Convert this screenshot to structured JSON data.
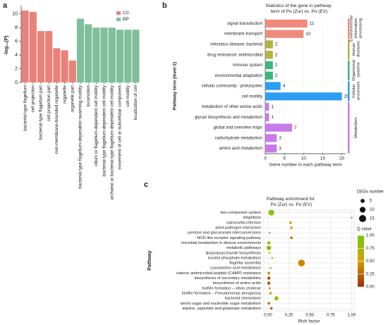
{
  "chart_data": [
    {
      "type": "bar",
      "label": "a",
      "ylabel": "-log₁₀(P)",
      "categories": [
        "bacterial-type flagellum",
        "cell projection",
        "bacterial-type flagellum part",
        "cell projection part",
        "non-membrane-bounded organelle",
        "organelle",
        "organelle part",
        "bacterial-type flagellum-dependent swarming motility",
        "locomotion",
        "cilium or flagellum-dependent cell motility",
        "bacterial-type flagellum-dependent cell motility",
        "archaeal or bacterial-type flagellum-dependent cell motility",
        "movement of cell or subcellular component",
        "cell motility",
        "localization of cell"
      ],
      "series": [
        {
          "name": "CC",
          "color": "#e8837c",
          "values": [
            10.5,
            10.3,
            7.5,
            7.5,
            5.0,
            4.7,
            3.2,
            null,
            null,
            null,
            null,
            null,
            null,
            null,
            null
          ]
        },
        {
          "name": "BP",
          "color": "#7fbf9b",
          "values": [
            null,
            null,
            null,
            null,
            null,
            null,
            null,
            9.3,
            8.5,
            8.0,
            8.0,
            8.0,
            7.7,
            7.7,
            7.7
          ]
        }
      ],
      "ylim": [
        0,
        10.8
      ],
      "yticks": [
        0,
        2,
        4,
        6,
        8,
        10
      ],
      "legend": "upper right"
    },
    {
      "type": "barh",
      "label": "b",
      "title": "Statistics of the gene in pathway term of Po (Zur) vs. Po (EV)",
      "xlabel": "Gene number in each pathway term",
      "ylabel": "Pathway term (level 2)",
      "categories": [
        "signal transduction",
        "membrane transport",
        "infectious disease: bacterial",
        "drug resistance: antimicrobial",
        "immune system",
        "environmental adaptation",
        "cellular community - prokaryotes",
        "cell motility",
        "metabolism of other amino acids",
        "glycan biosynthesis and metabolism",
        "global and overview maps",
        "carbohydrate metabolism",
        "amino acid metabolism"
      ],
      "series": [
        {
          "name": "Environmental information processing",
          "color": "#f08a7e",
          "values": [
            11,
            10,
            null,
            null,
            null,
            null,
            null,
            null,
            null,
            null,
            null,
            null,
            null
          ]
        },
        {
          "name": "Human diseases",
          "color": "#b3b43c",
          "values": [
            null,
            null,
            2,
            2,
            null,
            null,
            null,
            null,
            null,
            null,
            null,
            null,
            null
          ]
        },
        {
          "name": "Organismal systems",
          "color": "#3cb878",
          "values": [
            null,
            null,
            null,
            null,
            2,
            2,
            null,
            null,
            null,
            null,
            null,
            null,
            null
          ]
        },
        {
          "name": "Cellular processes",
          "color": "#2a9df4",
          "values": [
            null,
            null,
            null,
            null,
            null,
            null,
            4,
            20,
            null,
            null,
            null,
            null,
            null
          ]
        },
        {
          "name": "Metabolism",
          "color": "#c77be8",
          "values": [
            null,
            null,
            null,
            null,
            null,
            null,
            null,
            null,
            1,
            1,
            7,
            3,
            3
          ]
        }
      ],
      "xlim": [
        0,
        21
      ],
      "xticks": [
        0,
        5,
        10,
        15,
        20
      ]
    },
    {
      "type": "bubble",
      "label": "c",
      "title": "Pathway enrichment for Po (Zur) vs. Po (EV)",
      "xlabel": "Rich factor",
      "ylabel": "Pathway",
      "categories": [
        "two-component system",
        "shigellosis",
        "salmonella infection",
        "plant-pathogen interaction",
        "pentose and glucuronate interconversions",
        "NOD-like receptor signaling pathway",
        "microbial metabolism in diverse environments",
        "metabolic pathways",
        "lipopolysaccharide biosynthesis",
        "inositol phosphate metabolism",
        "flagellar assembly",
        "cyanoamino acid metabolism",
        "cationic antimicrobial peptide (CAMP) resistance",
        "biosynthesis of secondary metabolites",
        "biosynthesis of amino acids",
        "biofilm formation – vibrio cholerae",
        "biofilm formation – Pseudomonas aeruginosa",
        "bacterial chemotaxis",
        "amino sugar and nucleotide sugar metabolism",
        "alanine, aspartate and glutamate metabolism"
      ],
      "x": [
        0.04,
        1.0,
        0.27,
        0.28,
        0.02,
        0.28,
        0.01,
        0.01,
        0.02,
        0.05,
        0.4,
        0.03,
        0.01,
        0.01,
        0.01,
        0.02,
        0.03,
        0.1,
        0.01,
        0.04
      ],
      "sizes": [
        10,
        1,
        2,
        2,
        1,
        2,
        3,
        6,
        1,
        1,
        14,
        1,
        2,
        3,
        3,
        1,
        2,
        5,
        2,
        2
      ],
      "qvalues": [
        0.9,
        0.6,
        0.6,
        0.5,
        0.7,
        0.3,
        0.8,
        0.9,
        0.7,
        0.7,
        0.4,
        0.8,
        0.4,
        0.2,
        0.2,
        0.3,
        0.5,
        0.9,
        0.3,
        0.2
      ],
      "xlim": [
        -0.05,
        1.03
      ],
      "xticks": [
        {
          "value": 0,
          "label": "0.00"
        },
        {
          "value": 0.25,
          "label": "0.25"
        },
        {
          "value": 0.5,
          "label": "0.50"
        },
        {
          "value": 0.75,
          "label": "0.75"
        },
        {
          "value": 1,
          "label": "1.00"
        }
      ],
      "grid": true,
      "size_legend": {
        "title": "DEGs number",
        "values": [
          5,
          10,
          15
        ]
      },
      "colorbar": {
        "title": "Q value",
        "colors": [
          "#9e2a08",
          "#d6a000",
          "#70cc10"
        ],
        "ticks": [
          {
            "value": 1,
            "label": "1.00"
          },
          {
            "value": 0.75,
            "label": "0.75"
          },
          {
            "value": 0.5,
            "label": "0.50"
          },
          {
            "value": 0.25,
            "label": "0.25"
          },
          {
            "value": 0,
            "label": "0.00"
          }
        ]
      }
    }
  ]
}
